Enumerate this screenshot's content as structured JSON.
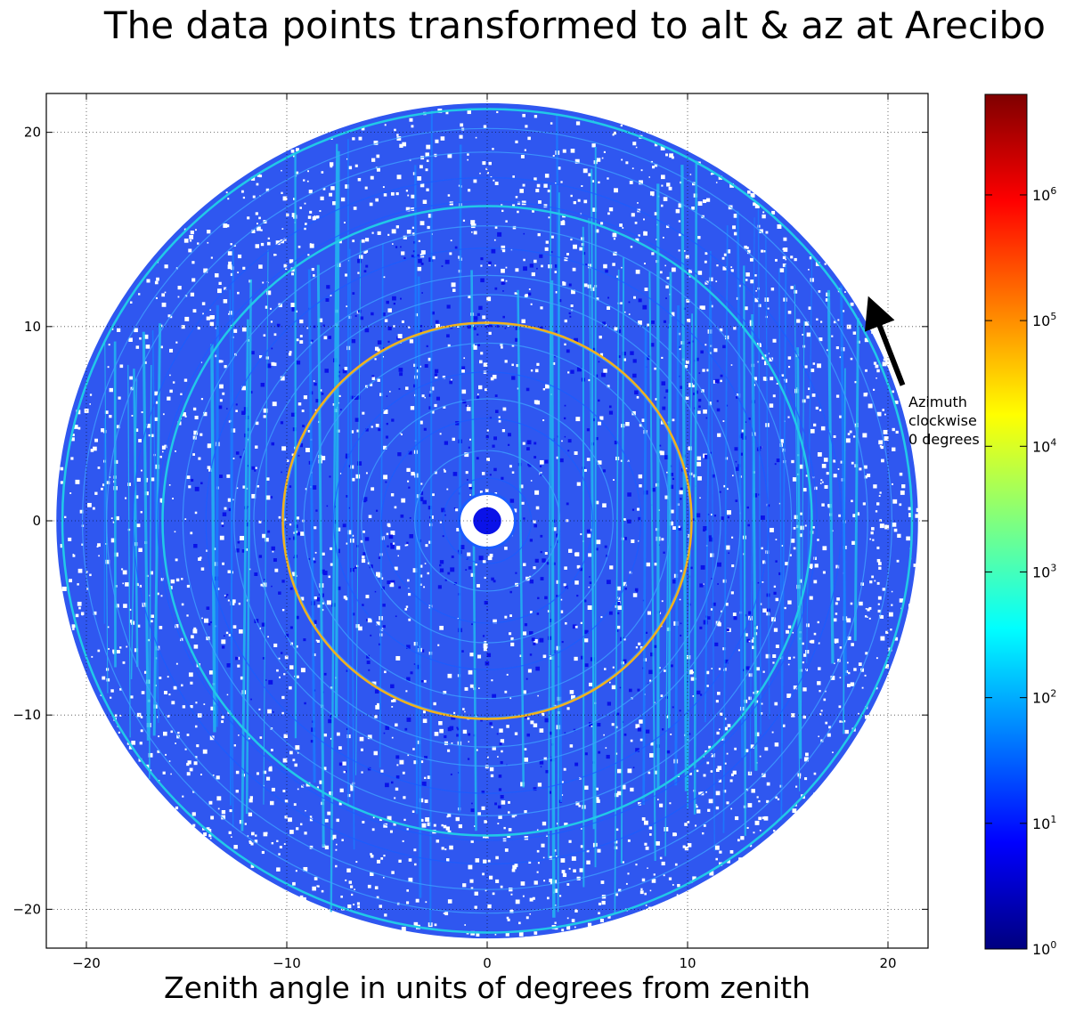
{
  "chart_data": {
    "type": "heatmap",
    "title": "The data points transformed to alt & az at Arecibo",
    "xlabel": "Zenith angle in units of degrees from zenith",
    "ylabel": "",
    "xlim": [
      -22,
      22
    ],
    "ylim": [
      -22,
      22
    ],
    "x_ticks": [
      -20,
      -10,
      0,
      10,
      20
    ],
    "y_ticks": [
      -20,
      -10,
      0,
      10,
      20
    ],
    "grid": true,
    "grid_style": "dotted",
    "coverage_radius": 21.5,
    "inner_hole_radius": 1.4,
    "high_density_rings": [
      {
        "radius": 10.2,
        "log10_count": 4.6,
        "color": "#f2b21c"
      },
      {
        "radius": 16.2,
        "log10_count": 2.3,
        "color": "#21c9e8"
      },
      {
        "radius": 21.2,
        "log10_count": 2.2,
        "color": "#21c9e8"
      }
    ],
    "annotation": {
      "text_lines": [
        "Azimuth",
        "clockwise",
        "0 degrees"
      ],
      "arrow_tail": [
        21.0,
        6.8
      ],
      "arrow_head": [
        19.3,
        10.8
      ]
    },
    "colorbar": {
      "scale": "log",
      "min_exponent": 0,
      "max_exponent": 6.8,
      "tick_labels": [
        "10^0",
        "10^1",
        "10^2",
        "10^3",
        "10^4",
        "10^5",
        "10^6"
      ],
      "colormap": "jet",
      "colormap_stops": [
        "#00007f",
        "#0000ff",
        "#007fff",
        "#00ffff",
        "#7fff7f",
        "#ffff00",
        "#ff7f00",
        "#ff0000",
        "#7f0000"
      ]
    }
  }
}
